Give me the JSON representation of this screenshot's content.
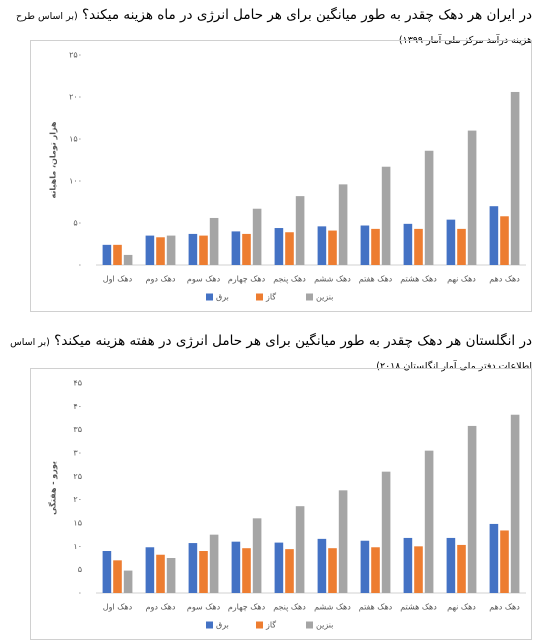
{
  "chart_data": [
    {
      "type": "bar",
      "title": "در ایران هر دهک چقدر به طور میانگین برای هر حامل انرژی در ماه هزینه میکند؟",
      "subtitle": "(بر اساس طرح هزینه درآمد مرکز ملی آمار ۱۳۹۹)",
      "y_label": "هزار تومان، ماهیانه",
      "categories": [
        "دهک اول",
        "دهک دوم",
        "دهک سوم",
        "دهک چهارم",
        "دهک پنجم",
        "دهک ششم",
        "دهک هفتم",
        "دهک هشتم",
        "دهک نهم",
        "دهک دهم"
      ],
      "series": [
        {
          "name": "برق",
          "color": "#4472c4",
          "values": [
            24,
            35,
            37,
            40,
            44,
            46,
            47,
            49,
            54,
            70
          ]
        },
        {
          "name": "گاز",
          "color": "#ed7d31",
          "values": [
            24,
            33,
            35,
            37,
            39,
            41,
            43,
            43,
            43,
            58
          ]
        },
        {
          "name": "بنزین",
          "color": "#a5a5a5",
          "values": [
            12,
            35,
            56,
            67,
            82,
            96,
            117,
            136,
            160,
            206
          ]
        }
      ],
      "ylim": [
        0,
        250
      ],
      "yticks": [
        {
          "value": 0,
          "label": "۰"
        },
        {
          "value": 50,
          "label": "۵۰"
        },
        {
          "value": 100,
          "label": "۱۰۰"
        },
        {
          "value": 150,
          "label": "۱۵۰"
        },
        {
          "value": 200,
          "label": "۲۰۰"
        },
        {
          "value": 250,
          "label": "۲۵۰"
        }
      ],
      "grid": false,
      "legend": "bottom"
    },
    {
      "type": "bar",
      "title": "در انگلستان هر دهک چقدر به طور میانگین برای هر حامل انرژی در هفته هزینه میکند؟",
      "subtitle": "(بر اساس اطلاعات دفتر ملی آمار انگلستان ۲۰۱۸)",
      "y_label": "یورو - هفتگی",
      "categories": [
        "دهک اول",
        "دهک دوم",
        "دهک سوم",
        "دهک چهارم",
        "دهک پنجم",
        "دهک ششم",
        "دهک هفتم",
        "دهک هشتم",
        "دهک نهم",
        "دهک دهم"
      ],
      "series": [
        {
          "name": "برق",
          "color": "#4472c4",
          "values": [
            9,
            9.8,
            10.7,
            11,
            10.8,
            11.6,
            11.2,
            11.8,
            11.8,
            14.8
          ]
        },
        {
          "name": "گاز",
          "color": "#ed7d31",
          "values": [
            7,
            8.2,
            9,
            9.6,
            9.4,
            9.6,
            9.8,
            10,
            10.3,
            13.4
          ]
        },
        {
          "name": "بنزین",
          "color": "#a5a5a5",
          "values": [
            4.8,
            7.5,
            12.5,
            16,
            18.6,
            22,
            26,
            30.5,
            35.8,
            38.2
          ]
        }
      ],
      "ylim": [
        0,
        45
      ],
      "yticks": [
        {
          "value": 0,
          "label": "۰"
        },
        {
          "value": 5,
          "label": "۵"
        },
        {
          "value": 10,
          "label": "۱۰"
        },
        {
          "value": 15,
          "label": "۱۵"
        },
        {
          "value": 20,
          "label": "۲۰"
        },
        {
          "value": 25,
          "label": "۲۵"
        },
        {
          "value": 30,
          "label": "۳۰"
        },
        {
          "value": 35,
          "label": "۳۵"
        },
        {
          "value": 40,
          "label": "۴۰"
        },
        {
          "value": 45,
          "label": "۴۵"
        }
      ],
      "grid": false,
      "legend": "bottom"
    }
  ]
}
